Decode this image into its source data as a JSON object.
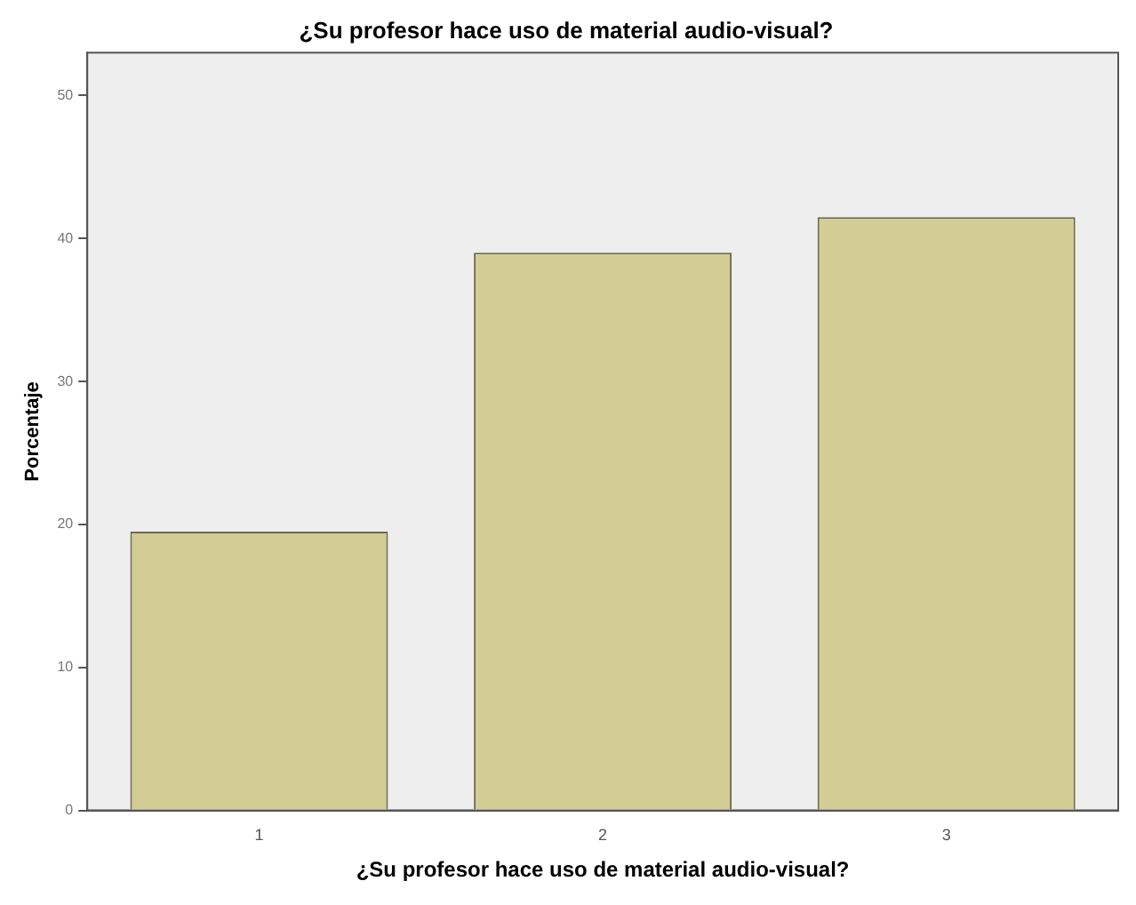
{
  "chart_data": {
    "type": "bar",
    "title": "¿Su profesor hace uso de material audio-visual?",
    "xlabel": "¿Su profesor hace uso de material audio-visual?",
    "ylabel": "Porcentaje",
    "categories": [
      "1",
      "2",
      "3"
    ],
    "values": [
      19.5,
      39,
      41.5
    ],
    "color": "#d3cd95",
    "ylim": [
      0,
      53
    ],
    "yticks": [
      0,
      10,
      20,
      30,
      40,
      50
    ],
    "grid": false,
    "legend": false
  }
}
